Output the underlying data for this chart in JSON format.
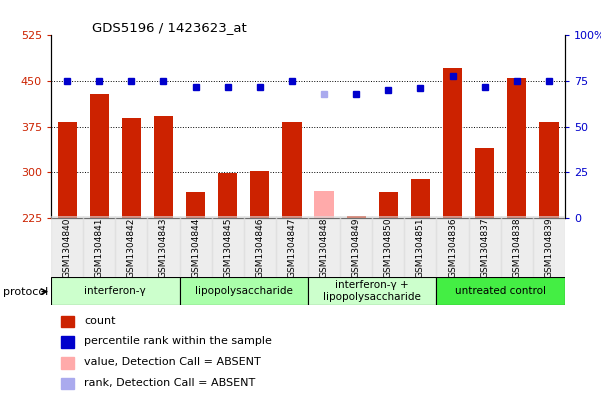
{
  "title": "GDS5196 / 1423623_at",
  "samples": [
    "GSM1304840",
    "GSM1304841",
    "GSM1304842",
    "GSM1304843",
    "GSM1304844",
    "GSM1304845",
    "GSM1304846",
    "GSM1304847",
    "GSM1304848",
    "GSM1304849",
    "GSM1304850",
    "GSM1304851",
    "GSM1304836",
    "GSM1304837",
    "GSM1304838",
    "GSM1304839"
  ],
  "counts": [
    383,
    428,
    390,
    393,
    268,
    299,
    303,
    383,
    270,
    229,
    268,
    289,
    472,
    340,
    455,
    383
  ],
  "ranks": [
    75,
    75,
    75,
    75,
    72,
    72,
    72,
    75,
    68,
    68,
    70,
    71,
    78,
    72,
    75,
    75
  ],
  "absent_flags": [
    false,
    false,
    false,
    false,
    false,
    false,
    false,
    false,
    true,
    false,
    false,
    false,
    false,
    false,
    false,
    false
  ],
  "absent_rank_flags": [
    false,
    false,
    false,
    false,
    false,
    false,
    false,
    false,
    true,
    false,
    false,
    false,
    false,
    false,
    false,
    false
  ],
  "groups": [
    {
      "label": "interferon-γ",
      "start": 0,
      "end": 4,
      "color": "#ccffcc"
    },
    {
      "label": "lipopolysaccharide",
      "start": 4,
      "end": 8,
      "color": "#aaffaa"
    },
    {
      "label": "interferon-γ +\nlipopolysaccharide",
      "start": 8,
      "end": 12,
      "color": "#ccffcc"
    },
    {
      "label": "untreated control",
      "start": 12,
      "end": 16,
      "color": "#44ee44"
    }
  ],
  "ylim_left": [
    225,
    525
  ],
  "ylim_right": [
    0,
    100
  ],
  "yticks_left": [
    225,
    300,
    375,
    450,
    525
  ],
  "yticks_right": [
    0,
    25,
    50,
    75,
    100
  ],
  "bar_color_present": "#cc2200",
  "bar_color_absent": "#ffaaaa",
  "dot_color_present": "#0000cc",
  "dot_color_absent": "#aaaaee",
  "plot_bg": "#ffffff",
  "grid_color": "#000000",
  "tick_label_color_left": "#cc2200",
  "tick_label_color_right": "#0000cc",
  "legend_items": [
    {
      "color": "#cc2200",
      "label": "count"
    },
    {
      "color": "#0000cc",
      "label": "percentile rank within the sample"
    },
    {
      "color": "#ffaaaa",
      "label": "value, Detection Call = ABSENT"
    },
    {
      "color": "#aaaaee",
      "label": "rank, Detection Call = ABSENT"
    }
  ]
}
